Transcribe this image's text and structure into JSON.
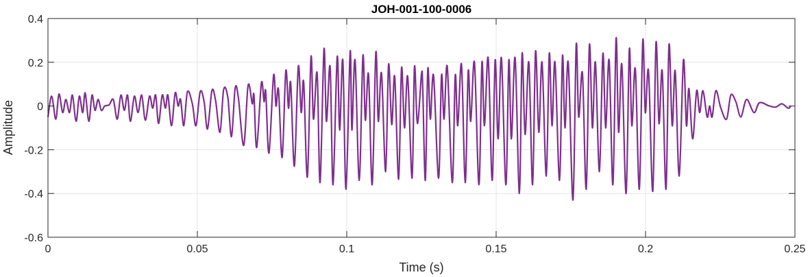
{
  "chart_data": {
    "type": "line",
    "title": "JOH-001-100-0006",
    "xlabel": "Time (s)",
    "ylabel": "Amplitude",
    "xlim": [
      0,
      0.25
    ],
    "ylim": [
      -0.6,
      0.4
    ],
    "xticks": [
      0,
      0.05,
      0.1,
      0.15,
      0.2,
      0.25
    ],
    "xtick_labels": [
      "0",
      "0.05",
      "0.1",
      "0.15",
      "0.2",
      "0.25"
    ],
    "yticks": [
      0.4,
      0.2,
      0,
      -0.2,
      -0.4,
      -0.6
    ],
    "ytick_labels": [
      "0.4",
      "0.2",
      "0",
      "-0.2",
      "-0.4",
      "-0.6"
    ],
    "grid": true,
    "legend": "none",
    "series": [
      {
        "name": "waveform",
        "color": "#7E2F8E",
        "x_unit": "ms",
        "points": [
          [
            0,
            -0.05
          ],
          [
            1.23,
            0.045
          ],
          [
            2.62,
            -0.06
          ],
          [
            3.68,
            0.055
          ],
          [
            4.92,
            -0.03
          ],
          [
            5.98,
            0.03
          ],
          [
            7.21,
            -0.03
          ],
          [
            8.18,
            0.05
          ],
          [
            9.42,
            -0.07
          ],
          [
            10.49,
            0.045
          ],
          [
            11.63,
            -0.03
          ],
          [
            12.45,
            0.06
          ],
          [
            13.68,
            -0.07
          ],
          [
            14.74,
            0.05
          ],
          [
            15.73,
            -0.02
          ],
          [
            16.79,
            0.03
          ],
          [
            17.86,
            -0.02
          ],
          [
            19.0,
            0.0
          ],
          [
            20.47,
            0.005
          ],
          [
            21.86,
            0.03
          ],
          [
            23.18,
            -0.06
          ],
          [
            24.4,
            0.05
          ],
          [
            25.55,
            -0.02
          ],
          [
            26.62,
            0.05
          ],
          [
            27.59,
            -0.07
          ],
          [
            28.91,
            0.045
          ],
          [
            30.14,
            -0.03
          ],
          [
            31.36,
            0.05
          ],
          [
            32.6,
            -0.065
          ],
          [
            33.99,
            0.045
          ],
          [
            35.05,
            -0.01
          ],
          [
            36.04,
            0.05
          ],
          [
            37.02,
            -0.08
          ],
          [
            38.24,
            0.05
          ],
          [
            39.31,
            -0.01
          ],
          [
            40.13,
            0.05
          ],
          [
            41.36,
            -0.09
          ],
          [
            42.58,
            0.06
          ],
          [
            43.57,
            0.0
          ],
          [
            44.39,
            0.03
          ],
          [
            45.45,
            -0.09
          ],
          [
            46.68,
            0.065
          ],
          [
            48.32,
            0.01
          ],
          [
            49.54,
            -0.09
          ],
          [
            50.94,
            0.065
          ],
          [
            52.25,
            0.02
          ],
          [
            53.4,
            -0.105
          ],
          [
            54.87,
            0.07
          ],
          [
            56.1,
            0.025
          ],
          [
            57.58,
            -0.12
          ],
          [
            58.8,
            0.075
          ],
          [
            60.19,
            0.04
          ],
          [
            61.42,
            -0.14
          ],
          [
            62.64,
            0.08
          ],
          [
            63.71,
            0.04
          ],
          [
            65.51,
            -0.18
          ],
          [
            66.99,
            0.095
          ],
          [
            68.39,
            0.01
          ],
          [
            68.95,
            0.05
          ],
          [
            69.85,
            -0.19
          ],
          [
            71.42,
            0.105
          ],
          [
            72.32,
            0.02
          ],
          [
            72.89,
            0.065
          ],
          [
            73.96,
            -0.215
          ],
          [
            75.51,
            0.14
          ],
          [
            76.32,
            0.0
          ],
          [
            77.15,
            0.075
          ],
          [
            78.37,
            -0.235
          ],
          [
            79.6,
            0.16
          ],
          [
            80.5,
            -0.01
          ],
          [
            81.24,
            0.105
          ],
          [
            82.47,
            -0.275
          ],
          [
            83.78,
            0.18
          ],
          [
            84.76,
            -0.03
          ],
          [
            85.58,
            0.11
          ],
          [
            86.81,
            -0.325
          ],
          [
            88.04,
            0.225
          ],
          [
            88.86,
            -0.06
          ],
          [
            90.09,
            0.15
          ],
          [
            91.07,
            -0.35
          ],
          [
            92.38,
            0.26
          ],
          [
            93.19,
            -0.07
          ],
          [
            94.43,
            0.18
          ],
          [
            95.41,
            -0.36
          ],
          [
            96.8,
            0.225
          ],
          [
            97.62,
            -0.11
          ],
          [
            98.68,
            0.21
          ],
          [
            99.75,
            -0.38
          ],
          [
            101.14,
            0.25
          ],
          [
            101.72,
            -0.11
          ],
          [
            102.78,
            0.21
          ],
          [
            104.18,
            -0.34
          ],
          [
            105.41,
            0.23
          ],
          [
            106.22,
            -0.065
          ],
          [
            107.28,
            0.145
          ],
          [
            108.51,
            -0.36
          ],
          [
            109.74,
            0.245
          ],
          [
            110.56,
            -0.07
          ],
          [
            111.63,
            0.15
          ],
          [
            113.01,
            -0.3
          ],
          [
            114.0,
            0.19
          ],
          [
            115.06,
            -0.085
          ],
          [
            116.04,
            0.135
          ],
          [
            117.36,
            -0.335
          ],
          [
            118.34,
            0.175
          ],
          [
            119.32,
            -0.1
          ],
          [
            120.39,
            0.135
          ],
          [
            121.86,
            -0.33
          ],
          [
            122.67,
            0.18
          ],
          [
            123.66,
            -0.08
          ],
          [
            125.05,
            0.15
          ],
          [
            125.46,
            0.07
          ],
          [
            126.3,
            -0.34
          ],
          [
            127.13,
            0.17
          ],
          [
            127.97,
            -0.06
          ],
          [
            129.05,
            0.14
          ],
          [
            130.72,
            -0.33
          ],
          [
            131.72,
            0.14
          ],
          [
            132.56,
            -0.06
          ],
          [
            133.64,
            0.18
          ],
          [
            135.31,
            -0.35
          ],
          [
            136.31,
            0.14
          ],
          [
            137.15,
            -0.09
          ],
          [
            138.4,
            0.19
          ],
          [
            139.65,
            -0.35
          ],
          [
            140.65,
            0.16
          ],
          [
            141.49,
            -0.07
          ],
          [
            142.74,
            0.2
          ],
          [
            144.24,
            -0.36
          ],
          [
            145.25,
            0.2
          ],
          [
            146.08,
            -0.09
          ],
          [
            147.33,
            0.22
          ],
          [
            148.67,
            -0.34
          ],
          [
            149.67,
            0.21
          ],
          [
            150.67,
            -0.15
          ],
          [
            151.76,
            0.22
          ],
          [
            153.26,
            -0.36
          ],
          [
            154.26,
            0.21
          ],
          [
            155.1,
            -0.15
          ],
          [
            156.35,
            0.22
          ],
          [
            157.77,
            -0.4
          ],
          [
            158.69,
            0.24
          ],
          [
            159.69,
            -0.13
          ],
          [
            160.94,
            0.2
          ],
          [
            162.19,
            -0.36
          ],
          [
            163.19,
            0.25
          ],
          [
            164.28,
            -0.12
          ],
          [
            165.36,
            0.2
          ],
          [
            166.78,
            -0.32
          ],
          [
            167.78,
            0.24
          ],
          [
            168.7,
            -0.09
          ],
          [
            169.7,
            0.2
          ],
          [
            171.2,
            -0.34
          ],
          [
            172.21,
            0.23
          ],
          [
            173.04,
            -0.1
          ],
          [
            174.13,
            0.2
          ],
          [
            175.71,
            -0.43
          ],
          [
            176.8,
            0.28
          ],
          [
            177.63,
            -0.05
          ],
          [
            178.88,
            0.15
          ],
          [
            180.14,
            -0.38
          ],
          [
            181.22,
            0.28
          ],
          [
            182.22,
            -0.1
          ],
          [
            183.22,
            0.2
          ],
          [
            184.56,
            -0.3
          ],
          [
            185.73,
            0.24
          ],
          [
            186.65,
            -0.1
          ],
          [
            187.82,
            0.21
          ],
          [
            189.07,
            -0.36
          ],
          [
            190.15,
            0.31
          ],
          [
            190.99,
            -0.12
          ],
          [
            192.07,
            0.19
          ],
          [
            193.49,
            -0.4
          ],
          [
            194.58,
            0.26
          ],
          [
            195.41,
            -0.09
          ],
          [
            196.58,
            0.17
          ],
          [
            197.92,
            -0.38
          ],
          [
            199.08,
            0.3
          ],
          [
            199.92,
            -0.03
          ],
          [
            201.0,
            0.16
          ],
          [
            202.42,
            -0.39
          ],
          [
            203.51,
            0.29
          ],
          [
            204.51,
            -0.08
          ],
          [
            205.59,
            0.16
          ],
          [
            206.85,
            -0.38
          ],
          [
            207.85,
            0.28
          ],
          [
            208.93,
            -0.09
          ],
          [
            209.93,
            0.16
          ],
          [
            211.27,
            -0.32
          ],
          [
            212.69,
            0.21
          ],
          [
            213.69,
            -0.09
          ],
          [
            214.52,
            0.08
          ],
          [
            215.78,
            -0.15
          ],
          [
            217.11,
            0.07
          ],
          [
            218.12,
            -0.03
          ],
          [
            219.2,
            0.07
          ],
          [
            220.62,
            -0.05
          ],
          [
            221.46,
            0.0
          ],
          [
            222.29,
            -0.05
          ],
          [
            223.54,
            0.07
          ],
          [
            225.21,
            -0.01
          ],
          [
            227.13,
            -0.06
          ],
          [
            228.55,
            0.05
          ],
          [
            230.22,
            0.02
          ],
          [
            231.89,
            -0.05
          ],
          [
            233.81,
            0.03
          ],
          [
            236.31,
            -0.03
          ],
          [
            238.15,
            0.015
          ],
          [
            241.49,
            0.0
          ],
          [
            243.58,
            -0.005
          ],
          [
            245.66,
            0.01
          ],
          [
            247.75,
            -0.01
          ],
          [
            248.58,
            0.0
          ]
        ]
      }
    ]
  }
}
